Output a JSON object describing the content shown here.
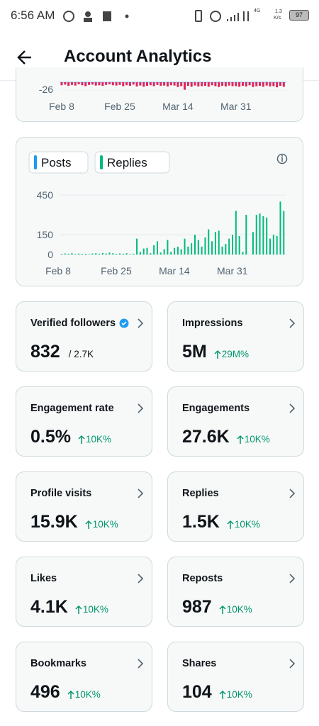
{
  "status_bar": {
    "time": "6:56 AM",
    "network": "4G",
    "speed": "1.3",
    "speed_unit": "K/s",
    "battery": "97"
  },
  "header": {
    "title": "Account Analytics"
  },
  "chart_data": [
    {
      "type": "bar",
      "categories": [
        "Feb 8",
        null,
        null,
        null,
        null,
        null,
        null,
        null,
        null,
        null,
        null,
        null,
        null,
        null,
        null,
        null,
        null,
        "Feb 25",
        null,
        null,
        null,
        null,
        null,
        null,
        null,
        null,
        null,
        null,
        null,
        null,
        null,
        null,
        null,
        null,
        "Mar 14",
        null,
        null,
        null,
        null,
        null,
        null,
        null,
        null,
        null,
        null,
        null,
        null,
        null,
        null,
        null,
        null,
        "Mar 31",
        null,
        null,
        null,
        null,
        null,
        null,
        null,
        null,
        null,
        null,
        null,
        null,
        null,
        null
      ],
      "values": [
        -10,
        -8,
        -12,
        -9,
        -11,
        -7,
        -10,
        -13,
        -9,
        -8,
        -11,
        -10,
        -12,
        -9,
        -7,
        -10,
        -11,
        -9,
        -13,
        -10,
        -12,
        -8,
        -14,
        -11,
        -15,
        -12,
        -10,
        -13,
        -9,
        -12,
        -11,
        -14,
        -10,
        -11,
        -16,
        -13,
        -25,
        -12,
        -15,
        -11,
        -14,
        -13,
        -12,
        -15,
        -10,
        -13,
        -16,
        -12,
        -14,
        -11,
        -13,
        -13,
        -15,
        -12,
        -14,
        -10,
        -16,
        -13,
        -12,
        -15,
        -11,
        -14,
        -13,
        -17,
        -12,
        -15
      ],
      "color": "#e0245e",
      "yticks": [
        -26
      ]
    },
    {
      "type": "bar",
      "legend": [
        {
          "name": "Posts",
          "color": "#1d9bf0"
        },
        {
          "name": "Replies",
          "color": "#00ba7c"
        }
      ],
      "categories": [
        "Feb 8",
        null,
        null,
        null,
        null,
        null,
        null,
        null,
        null,
        null,
        null,
        null,
        null,
        null,
        null,
        null,
        null,
        "Feb 25",
        null,
        null,
        null,
        null,
        null,
        null,
        null,
        null,
        null,
        null,
        null,
        null,
        null,
        null,
        null,
        null,
        "Mar 14",
        null,
        null,
        null,
        null,
        null,
        null,
        null,
        null,
        null,
        null,
        null,
        null,
        null,
        null,
        null,
        null,
        "Mar 31",
        null,
        null,
        null,
        null,
        null,
        null,
        null,
        null,
        null,
        null,
        null,
        null,
        null,
        null
      ],
      "values": [
        5,
        8,
        6,
        10,
        4,
        7,
        5,
        6,
        3,
        8,
        10,
        6,
        12,
        8,
        15,
        10,
        5,
        8,
        6,
        10,
        4,
        6,
        120,
        20,
        45,
        50,
        10,
        70,
        100,
        15,
        40,
        110,
        20,
        50,
        60,
        40,
        120,
        60,
        85,
        150,
        110,
        60,
        130,
        190,
        100,
        170,
        180,
        60,
        80,
        120,
        150,
        330,
        140,
        20,
        300,
        0,
        170,
        300,
        310,
        290,
        280,
        120,
        150,
        140,
        400,
        330
      ],
      "color": "#00ba7c",
      "ylim": [
        0,
        450
      ],
      "yticks": [
        0,
        150,
        450
      ],
      "grid": true
    }
  ],
  "stats": [
    {
      "label": "Verified followers",
      "value": "832",
      "total": "/ 2.7K"
    },
    {
      "label": "Impressions",
      "value": "5M",
      "change": "29M%"
    },
    {
      "label": "Engagement rate",
      "value": "0.5%",
      "change": "10K%"
    },
    {
      "label": "Engagements",
      "value": "27.6K",
      "change": "10K%"
    },
    {
      "label": "Profile visits",
      "value": "15.9K",
      "change": "10K%"
    },
    {
      "label": "Replies",
      "value": "1.5K",
      "change": "10K%"
    },
    {
      "label": "Likes",
      "value": "4.1K",
      "change": "10K%"
    },
    {
      "label": "Reposts",
      "value": "987",
      "change": "10K%"
    },
    {
      "label": "Bookmarks",
      "value": "496",
      "change": "10K%"
    },
    {
      "label": "Shares",
      "value": "104",
      "change": "10K%"
    }
  ]
}
